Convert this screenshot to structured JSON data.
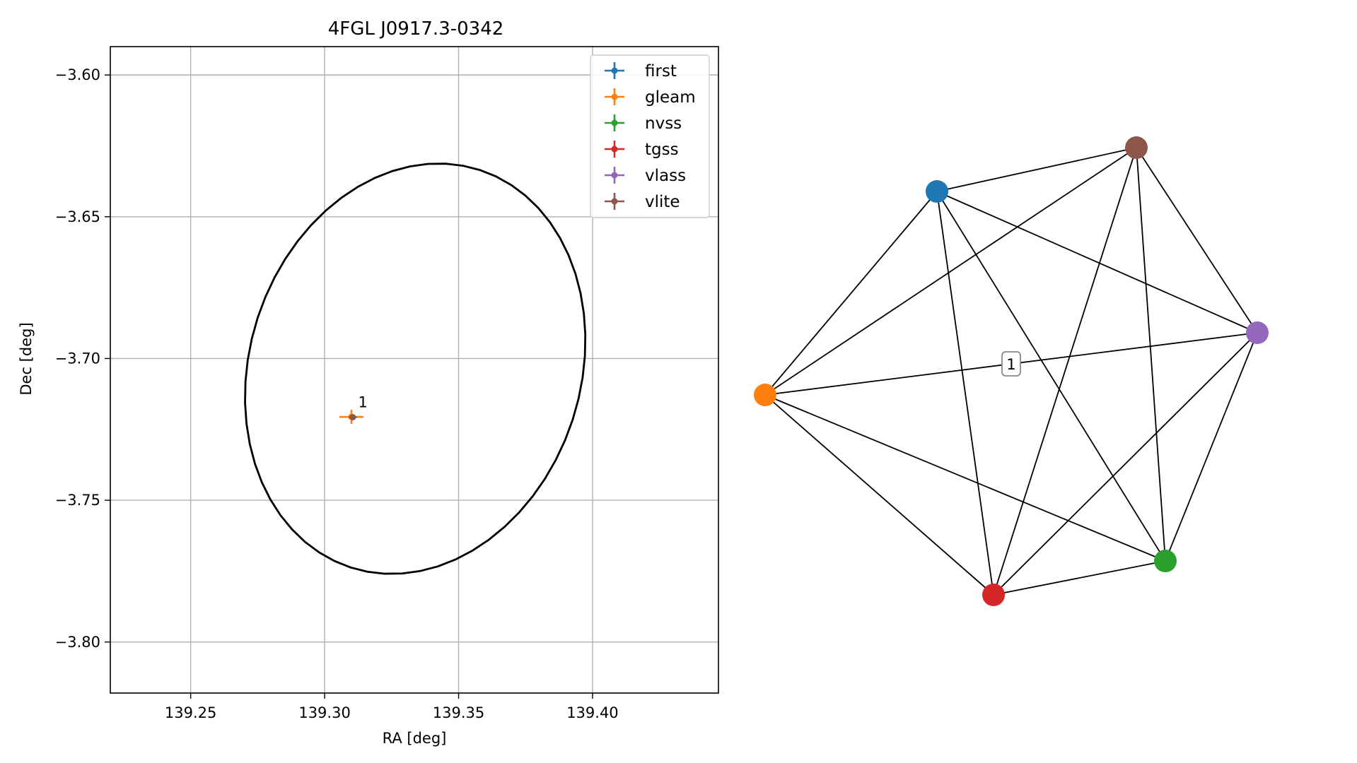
{
  "chart_data": [
    {
      "type": "scatter",
      "title": "4FGL J0917.3-0342",
      "xlabel": "RA [deg]",
      "ylabel": "Dec [deg]",
      "xlim": [
        139.22,
        139.447
      ],
      "ylim": [
        -3.818,
        -3.59
      ],
      "xticks": [
        139.25,
        139.3,
        139.35,
        139.4
      ],
      "xtick_labels": [
        "139.25",
        "139.30",
        "139.35",
        "139.40"
      ],
      "yticks": [
        -3.6,
        -3.65,
        -3.7,
        -3.75,
        -3.8
      ],
      "ytick_labels": [
        "−3.60",
        "−3.65",
        "−3.70",
        "−3.75",
        "−3.80"
      ],
      "grid": true,
      "legend_position": "top-right",
      "series": [
        {
          "name": "first",
          "color": "#1f77b4",
          "points": []
        },
        {
          "name": "gleam",
          "color": "#ff7f0e",
          "points": [
            {
              "x": 139.31,
              "y": -3.7206,
              "xerr": 0.0045,
              "yerr": 0.0025
            }
          ]
        },
        {
          "name": "nvss",
          "color": "#2ca02c",
          "points": []
        },
        {
          "name": "tgss",
          "color": "#d62728",
          "points": []
        },
        {
          "name": "vlass",
          "color": "#9467bd",
          "points": []
        },
        {
          "name": "vlite",
          "color": "#8c564b",
          "points": [
            {
              "x": 139.3105,
              "y": -3.7207,
              "xerr": 0.0015,
              "yerr": 0.001
            }
          ]
        }
      ],
      "ellipse": {
        "center": [
          139.3338,
          -3.7036
        ],
        "ra_halfwidth": 0.0618,
        "dec_halfheight": 0.0737,
        "tilt_deg": 18,
        "color": "#000000"
      },
      "annotations": [
        {
          "text": "1",
          "x": 139.3125,
          "y": -3.7172
        }
      ]
    },
    {
      "type": "network",
      "nodes": [
        {
          "id": "first",
          "color": "#1f77b4"
        },
        {
          "id": "gleam",
          "color": "#ff7f0e"
        },
        {
          "id": "nvss",
          "color": "#2ca02c"
        },
        {
          "id": "tgss",
          "color": "#d62728"
        },
        {
          "id": "vlass",
          "color": "#9467bd"
        },
        {
          "id": "vlite",
          "color": "#8c564b"
        }
      ],
      "edges": [
        [
          "first",
          "gleam"
        ],
        [
          "first",
          "nvss"
        ],
        [
          "first",
          "tgss"
        ],
        [
          "first",
          "vlass"
        ],
        [
          "first",
          "vlite"
        ],
        [
          "gleam",
          "nvss"
        ],
        [
          "gleam",
          "tgss"
        ],
        [
          "gleam",
          "vlass"
        ],
        [
          "gleam",
          "vlite"
        ],
        [
          "nvss",
          "tgss"
        ],
        [
          "nvss",
          "vlass"
        ],
        [
          "nvss",
          "vlite"
        ],
        [
          "tgss",
          "vlass"
        ],
        [
          "tgss",
          "vlite"
        ],
        [
          "vlass",
          "vlite"
        ]
      ],
      "edge_label": {
        "text": "1",
        "between": [
          "gleam",
          "vlass"
        ]
      }
    }
  ]
}
